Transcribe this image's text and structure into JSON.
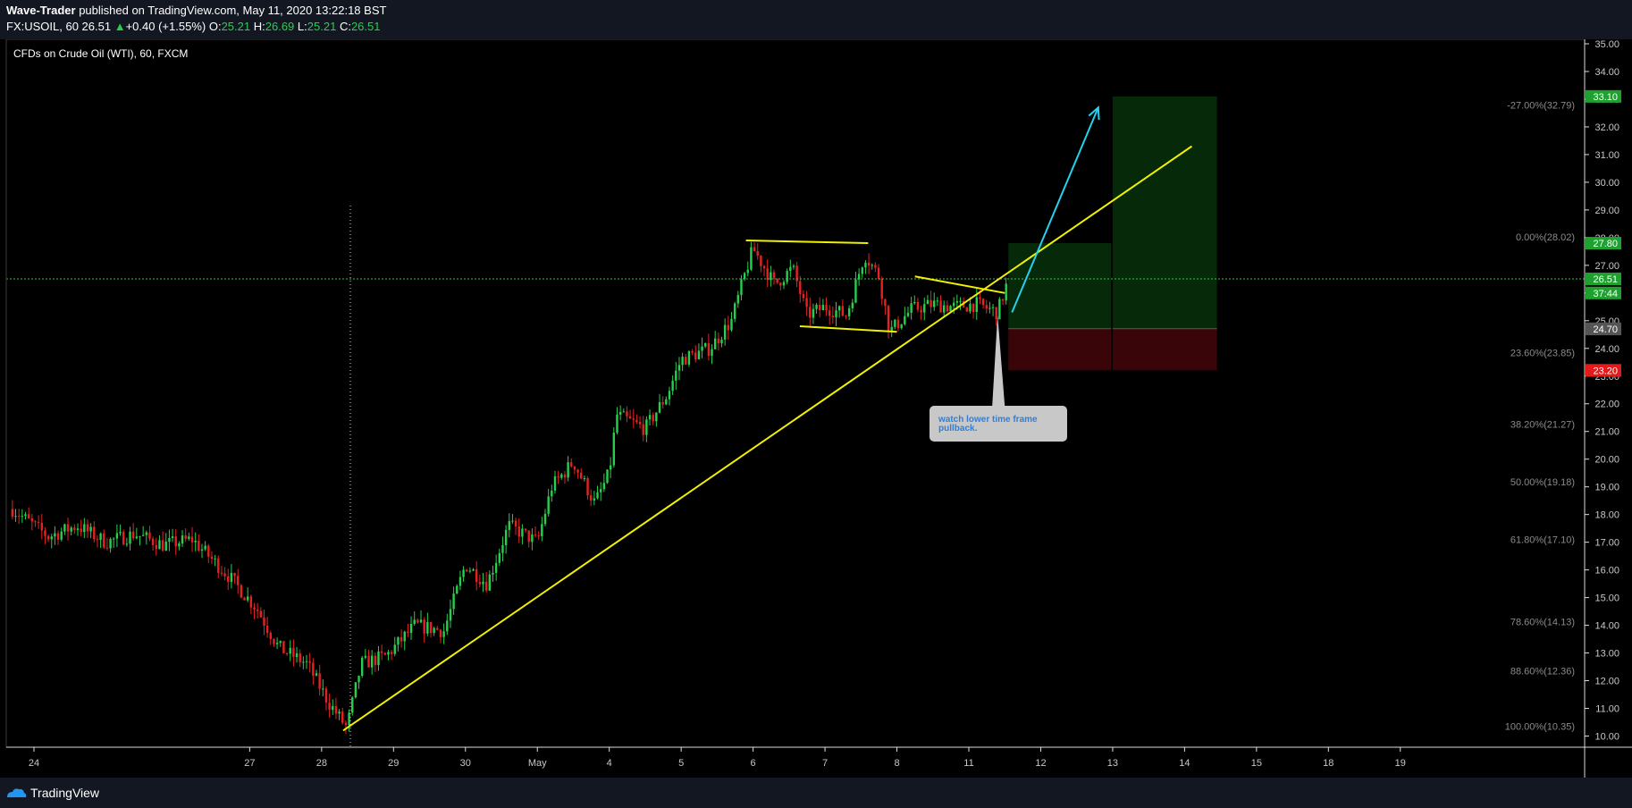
{
  "header": {
    "author": "Wave-Trader",
    "published": "published on TradingView.com, May 11, 2020 13:22:18 BST",
    "symbol": "FX:USOIL, 60",
    "last": "26.51",
    "change": "+0.40 (+1.55%)",
    "o_label": "O:",
    "o": "25.21",
    "h_label": "H:",
    "h": "26.69",
    "l_label": "L:",
    "l": "25.21",
    "c_label": "C:",
    "c": "26.51"
  },
  "footer": {
    "brand": "TradingView"
  },
  "colors": {
    "up": "#26d04c",
    "down": "#e52222",
    "trend": "#f0f000",
    "arrow": "#22d3ee",
    "profit": "#06290a",
    "loss": "#3a0508",
    "axis_text": "#c8c8c8",
    "fib_text": "#8a8a8a"
  },
  "chart_data": {
    "type": "candlestick",
    "title": "CFDs on Crude Oil (WTI), 60, FXCM",
    "ylim": [
      10.0,
      35.0
    ],
    "y_ticks": [
      "10.00",
      "11.00",
      "12.00",
      "13.00",
      "14.00",
      "15.00",
      "16.00",
      "17.00",
      "18.00",
      "19.00",
      "20.00",
      "21.00",
      "22.00",
      "23.00",
      "24.00",
      "25.00",
      "26.00",
      "27.00",
      "28.00",
      "29.00",
      "30.00",
      "31.00",
      "32.00",
      "33.00",
      "34.00",
      "35.00"
    ],
    "x_ticks": [
      {
        "label": "24",
        "t": 24
      },
      {
        "label": "27",
        "t": 27
      },
      {
        "label": "28",
        "t": 28
      },
      {
        "label": "29",
        "t": 29
      },
      {
        "label": "30",
        "t": 30
      },
      {
        "label": "May",
        "t": 31
      },
      {
        "label": "4",
        "t": 32
      },
      {
        "label": "5",
        "t": 33
      },
      {
        "label": "6",
        "t": 34
      },
      {
        "label": "7",
        "t": 35
      },
      {
        "label": "8",
        "t": 36
      },
      {
        "label": "11",
        "t": 37
      },
      {
        "label": "12",
        "t": 38
      },
      {
        "label": "13",
        "t": 39
      },
      {
        "label": "14",
        "t": 40
      },
      {
        "label": "15",
        "t": 41
      },
      {
        "label": "18",
        "t": 42
      },
      {
        "label": "19",
        "t": 43
      }
    ],
    "price_path": [
      {
        "t": 23.7,
        "p": 18.2
      },
      {
        "t": 24.2,
        "p": 17.2
      },
      {
        "t": 24.6,
        "p": 17.6
      },
      {
        "t": 25.0,
        "p": 17.0
      },
      {
        "t": 25.4,
        "p": 17.3
      },
      {
        "t": 25.8,
        "p": 16.9
      },
      {
        "t": 26.2,
        "p": 17.1
      },
      {
        "t": 26.7,
        "p": 15.8
      },
      {
        "t": 27.1,
        "p": 14.6
      },
      {
        "t": 27.4,
        "p": 13.2
      },
      {
        "t": 27.8,
        "p": 12.6
      },
      {
        "t": 28.1,
        "p": 11.2
      },
      {
        "t": 28.35,
        "p": 10.3
      },
      {
        "t": 28.55,
        "p": 12.6
      },
      {
        "t": 28.9,
        "p": 12.9
      },
      {
        "t": 29.3,
        "p": 14.0
      },
      {
        "t": 29.7,
        "p": 13.8
      },
      {
        "t": 30.0,
        "p": 16.2
      },
      {
        "t": 30.3,
        "p": 15.5
      },
      {
        "t": 30.6,
        "p": 17.6
      },
      {
        "t": 31.0,
        "p": 17.0
      },
      {
        "t": 31.2,
        "p": 19.0
      },
      {
        "t": 31.5,
        "p": 19.9
      },
      {
        "t": 31.8,
        "p": 18.4
      },
      {
        "t": 32.0,
        "p": 19.5
      },
      {
        "t": 32.1,
        "p": 21.6
      },
      {
        "t": 32.5,
        "p": 21.1
      },
      {
        "t": 32.8,
        "p": 22.3
      },
      {
        "t": 33.0,
        "p": 23.6
      },
      {
        "t": 33.4,
        "p": 24.0
      },
      {
        "t": 33.7,
        "p": 25.0
      },
      {
        "t": 33.9,
        "p": 26.8
      },
      {
        "t": 34.0,
        "p": 27.6
      },
      {
        "t": 34.3,
        "p": 26.3
      },
      {
        "t": 34.55,
        "p": 26.9
      },
      {
        "t": 34.75,
        "p": 25.2
      },
      {
        "t": 35.0,
        "p": 25.5
      },
      {
        "t": 35.3,
        "p": 25.2
      },
      {
        "t": 35.55,
        "p": 27.4
      },
      {
        "t": 35.75,
        "p": 26.6
      },
      {
        "t": 35.9,
        "p": 24.6
      },
      {
        "t": 36.2,
        "p": 25.4
      },
      {
        "t": 36.5,
        "p": 25.6
      },
      {
        "t": 36.8,
        "p": 25.5
      },
      {
        "t": 37.1,
        "p": 25.6
      },
      {
        "t": 37.4,
        "p": 25.3
      },
      {
        "t": 37.55,
        "p": 26.5
      }
    ],
    "last_price": 26.51,
    "price_labels": [
      {
        "value": "33.10",
        "bg": "#1fa12f"
      },
      {
        "value": "27.80",
        "bg": "#1fa12f"
      },
      {
        "value": "26.51",
        "bg": "#1fa12f"
      },
      {
        "value": "37:44",
        "bg": "#1fa12f",
        "p": 26.0
      },
      {
        "value": "24.71",
        "bg": "#555555"
      },
      {
        "value": "24.70",
        "bg": "#555555"
      },
      {
        "value": "23.21",
        "bg": "#e11b1b"
      },
      {
        "value": "23.20",
        "bg": "#e11b1b"
      }
    ],
    "fib_levels": [
      {
        "label": "-27.00%(32.79)",
        "p": 32.79
      },
      {
        "label": "0.00%(28.02)",
        "p": 28.02
      },
      {
        "label": "23.60%(23.85)",
        "p": 23.85
      },
      {
        "label": "38.20%(21.27)",
        "p": 21.27
      },
      {
        "label": "50.00%(19.18)",
        "p": 19.18
      },
      {
        "label": "61.80%(17.10)",
        "p": 17.1
      },
      {
        "label": "78.60%(14.13)",
        "p": 14.13
      },
      {
        "label": "88.60%(12.36)",
        "p": 12.36
      },
      {
        "label": "100.00%(10.35)",
        "p": 10.35
      }
    ],
    "trendlines": [
      {
        "t1": 28.3,
        "p1": 10.2,
        "t2": 40.1,
        "p2": 31.3
      },
      {
        "t1": 33.9,
        "p1": 27.9,
        "t2": 35.6,
        "p2": 27.8
      },
      {
        "t1": 34.65,
        "p1": 24.8,
        "t2": 36.0,
        "p2": 24.6
      },
      {
        "t1": 36.25,
        "p1": 26.6,
        "t2": 37.5,
        "p2": 26.0
      }
    ],
    "arrow": {
      "t1": 37.6,
      "p1": 25.3,
      "t2": 38.8,
      "p2": 32.7
    },
    "positions": [
      {
        "t1": 37.55,
        "t2": 38.98,
        "entry": 24.71,
        "target": 27.8,
        "stop": 23.21
      },
      {
        "t1": 39.0,
        "t2": 40.45,
        "entry": 24.71,
        "target": 33.1,
        "stop": 23.21
      }
    ],
    "callout": {
      "text_line1": "watch lower time frame",
      "text_line2": "pullback.",
      "pointer_t": 37.4,
      "pointer_p": 25.2
    }
  }
}
